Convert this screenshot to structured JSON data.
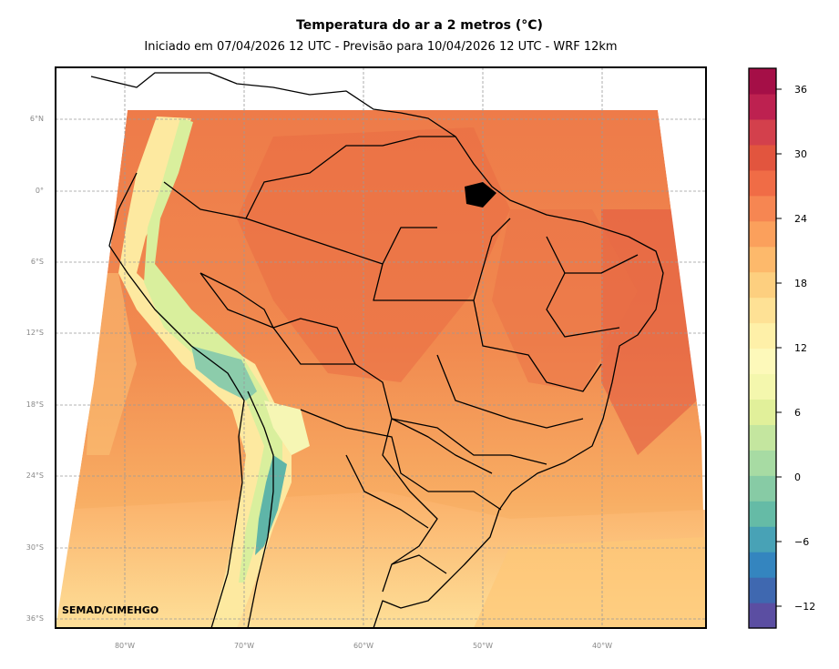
{
  "title": "Temperatura do ar a 2 metros (°C)",
  "subtitle": "Iniciado em 07/04/2026 12 UTC - Previsão para 10/04/2026 12 UTC - WRF 12km",
  "credit": "SEMAD/CIMEHGO",
  "lat_labels": [
    "6°N",
    "0°",
    "6°S",
    "12°S",
    "18°S",
    "24°S",
    "30°S",
    "36°S"
  ],
  "lon_labels": [
    "80°W",
    "70°W",
    "60°W",
    "50°W",
    "40°W"
  ],
  "colorbar": {
    "tick_labels": [
      "36",
      "30",
      "24",
      "18",
      "12",
      "6",
      "0",
      "−6",
      "−12"
    ],
    "colors": [
      "#5b4ea2",
      "#3f68b0",
      "#3485bf",
      "#48a2b6",
      "#65bba6",
      "#87cba5",
      "#a7dba3",
      "#c4e69f",
      "#e1f09a",
      "#f4f7ad",
      "#fdf9ba",
      "#fef0a8",
      "#fee195",
      "#fdcf7f",
      "#fdb96b",
      "#fba05c",
      "#f68652",
      "#f06c46",
      "#e2553e",
      "#d3404c",
      "#bd2150",
      "#a50f47"
    ]
  },
  "colors": {
    "ocean_warm": "#ee7c4a",
    "land_warm": "#ed7a48",
    "land_hot": "#e86a44",
    "andes_cold": "#8fd0a4",
    "south_cool": "#fdd48a"
  }
}
